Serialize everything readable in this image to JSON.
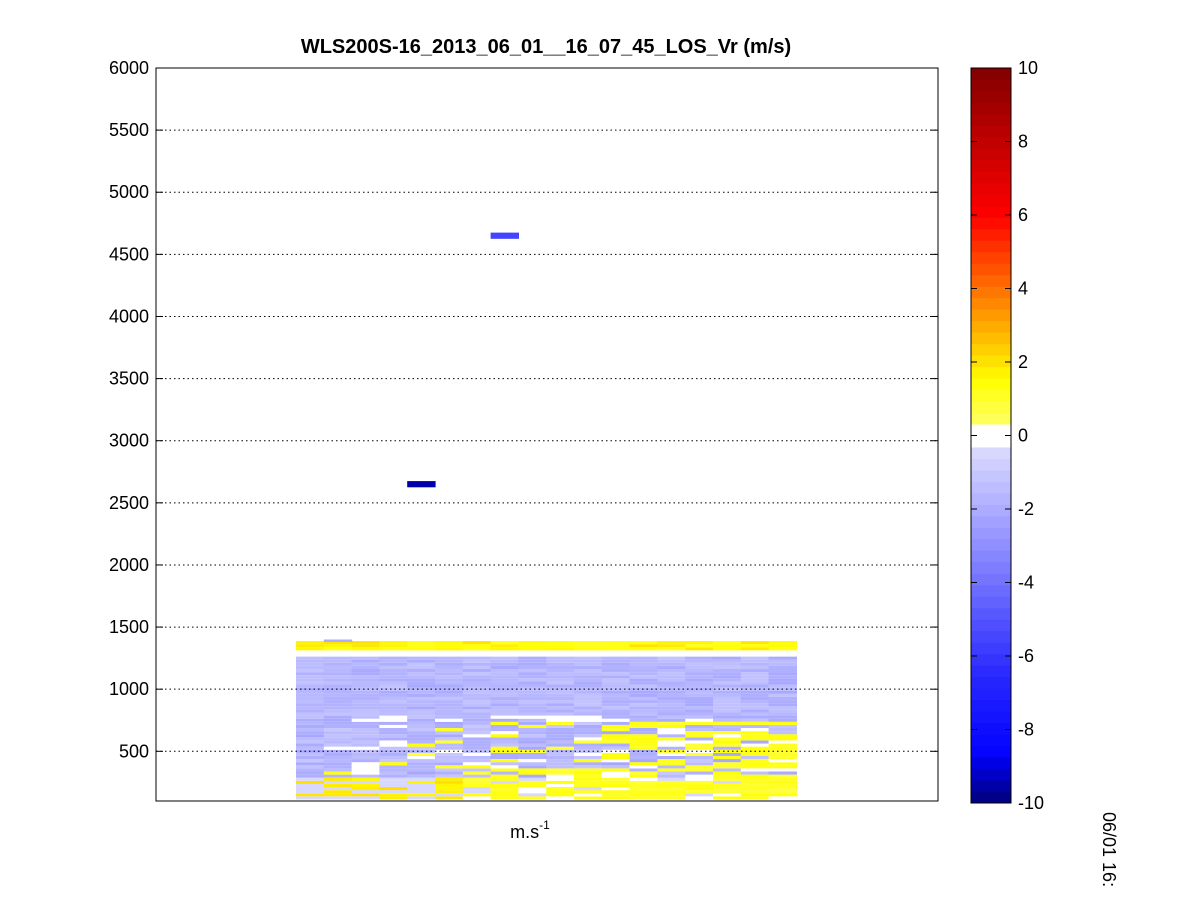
{
  "chart_data": {
    "type": "heatmap",
    "title": "WLS200S-16_2013_06_01__16_07_45_LOS_Vr (m/s)",
    "xlabel": "m.s",
    "xlabel_sup": "-1",
    "corner_label": "06/01 16:",
    "ylim": [
      100,
      6000
    ],
    "yticks": [
      500,
      1000,
      1500,
      2000,
      2500,
      3000,
      3500,
      4000,
      4500,
      5000,
      5500,
      6000
    ],
    "grid": "horizontal-dotted",
    "colorbar": {
      "range": [
        -10,
        10
      ],
      "ticks": [
        -10,
        -8,
        -6,
        -4,
        -2,
        0,
        2,
        4,
        6,
        8,
        10
      ],
      "colormap": "jet-like"
    },
    "x_columns": 18,
    "y_cell_height": 50,
    "cells": [
      {
        "col": 7,
        "y": 4650,
        "value": -5.5
      },
      {
        "col": 4,
        "y": 2650,
        "value": -9.5
      },
      {
        "col": 1,
        "y": 1390,
        "value": -2.0
      }
    ],
    "dense_region": {
      "col_start": 0,
      "col_end": 17,
      "y_start": 125,
      "y_end": 1375
    }
  }
}
